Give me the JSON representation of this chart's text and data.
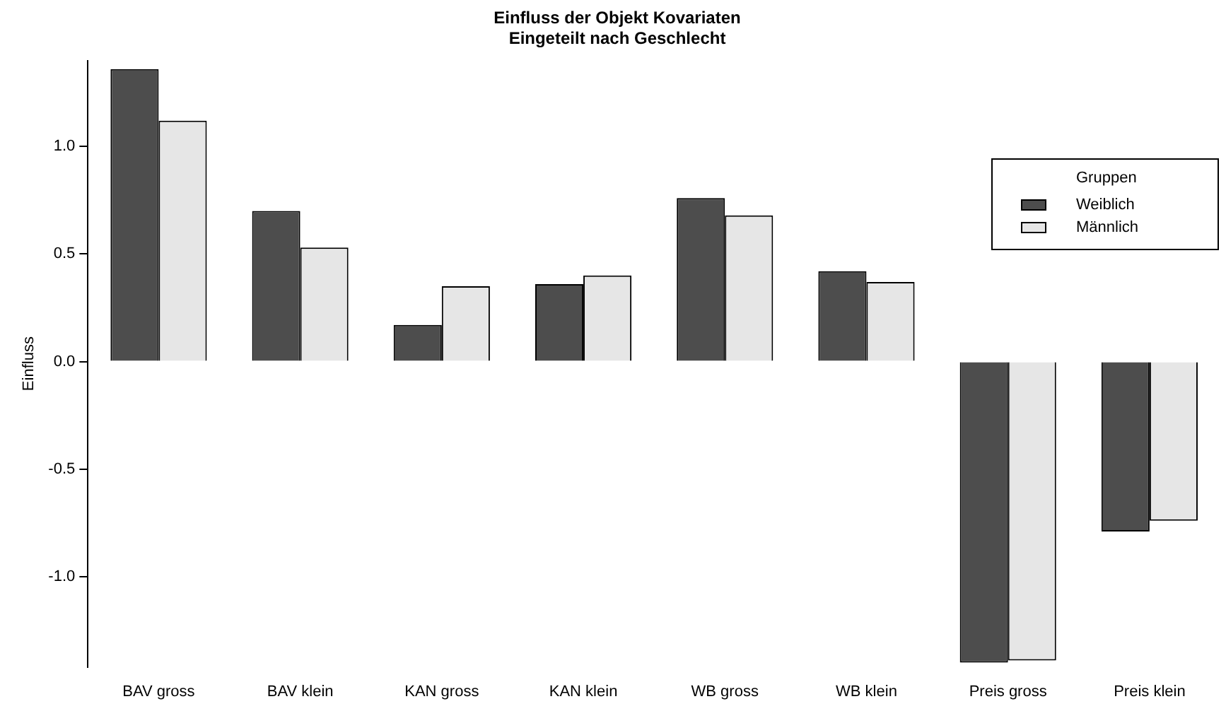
{
  "chart_data": {
    "type": "bar",
    "title": "Einfluss der Objekt Kovariaten",
    "subtitle": "Eingeteilt nach Geschlecht",
    "ylabel": "Einfluss",
    "legend_title": "Gruppen",
    "legend": "top right",
    "grid": false,
    "categories": [
      "BAV gross",
      "BAV klein",
      "KAN gross",
      "KAN klein",
      "WB gross",
      "WB klein",
      "Preis gross",
      "Preis klein"
    ],
    "series": [
      {
        "name": "Weiblich",
        "color": "#4d4d4d",
        "values": [
          1.36,
          0.7,
          0.17,
          0.36,
          0.76,
          0.42,
          -1.4,
          -0.79
        ]
      },
      {
        "name": "Männlich",
        "color": "#e6e6e6",
        "values": [
          1.12,
          0.53,
          0.35,
          0.4,
          0.68,
          0.37,
          -1.39,
          -0.74
        ]
      }
    ],
    "ylim": [
      -1.42,
      1.4
    ],
    "yticks": [
      {
        "value": -1,
        "label": "-1.0"
      },
      {
        "value": -0.5,
        "label": "-0.5"
      },
      {
        "value": 0,
        "label": "0.0"
      },
      {
        "value": 0.5,
        "label": "0.5"
      },
      {
        "value": 1,
        "label": "1.0"
      }
    ]
  }
}
